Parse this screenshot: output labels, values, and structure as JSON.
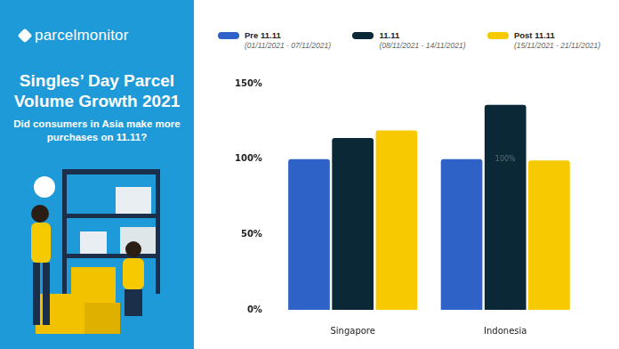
{
  "panel": {
    "brand": "parcelmonitor",
    "title": "Singles’ Day Parcel Volume Growth 2021",
    "subtitle": "Did consumers in Asia make more purchases on 11.11?"
  },
  "chart_data": {
    "type": "bar",
    "categories": [
      "Singapore",
      "Indonesia"
    ],
    "series": [
      {
        "name": "Pre 11.11",
        "period": "(01/11/2021 - 07/11/2021)",
        "color": "#2f62c6",
        "values": [
          100,
          100
        ]
      },
      {
        "name": "11.11",
        "period": "(08/11/2021 - 14/11/2021)",
        "color": "#0b2836",
        "values": [
          114,
          136
        ]
      },
      {
        "name": "Post 11.11",
        "period": "(15/11/2021 - 21/11/2021)",
        "color": "#f7c900",
        "values": [
          119,
          99
        ]
      }
    ],
    "ylim": [
      0,
      150
    ],
    "yticks": [
      {
        "value": 0,
        "label": "0%"
      },
      {
        "value": 50,
        "label": "50%"
      },
      {
        "value": 100,
        "label": "100%"
      },
      {
        "value": 150,
        "label": "150%"
      }
    ],
    "annotations": [
      {
        "text": "100%",
        "x": "Indonesia",
        "y": 100
      }
    ],
    "grid": false,
    "legend": "top"
  }
}
